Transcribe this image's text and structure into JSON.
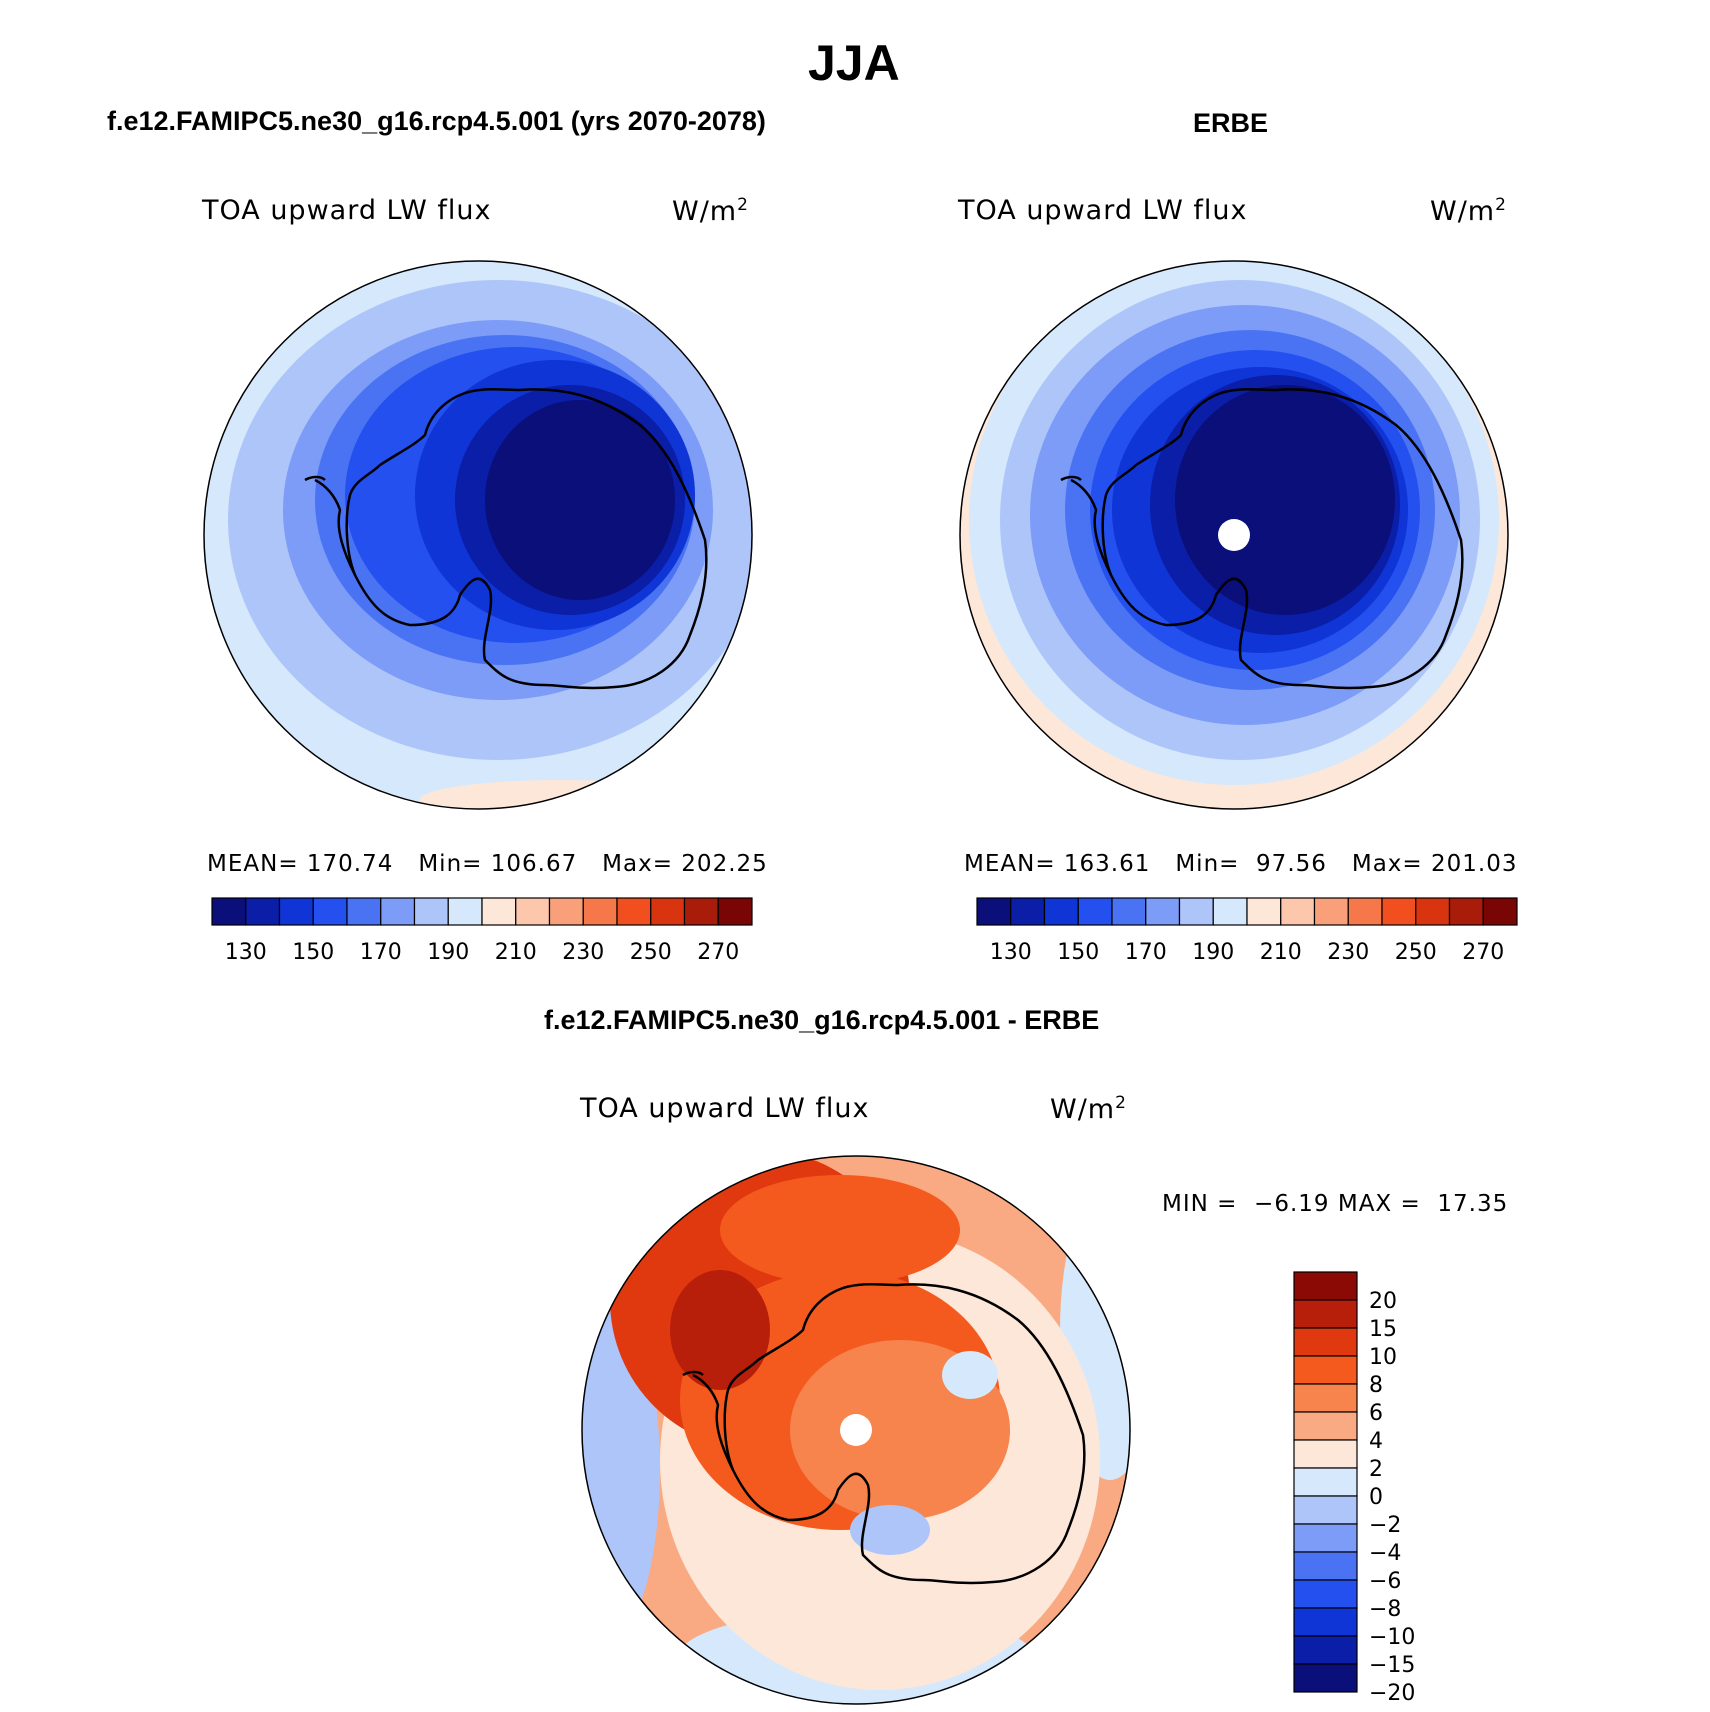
{
  "figure": {
    "title": "JJA"
  },
  "panels": [
    {
      "id": "model",
      "header": "f.e12.FAMIPC5.ne30_g16.rcp4.5.001 (yrs 2070-2078)",
      "variable_label": "TOA upward LW flux",
      "units_label": "W/m",
      "units_power": "2",
      "stats": {
        "mean_label": "MEAN=",
        "mean": "170.74",
        "min_label": "Min=",
        "min": "106.67",
        "max_label": "Max=",
        "max": "202.25"
      },
      "has_pole_hole": false
    },
    {
      "id": "obs",
      "header": "ERBE",
      "variable_label": "TOA upward LW flux",
      "units_label": "W/m",
      "units_power": "2",
      "stats": {
        "mean_label": "MEAN=",
        "mean": "163.61",
        "min_label": "Min=",
        "min": "97.56",
        "max_label": "Max=",
        "max": "201.03"
      },
      "has_pole_hole": true
    },
    {
      "id": "diff",
      "header": "f.e12.FAMIPC5.ne30_g16.rcp4.5.001 - ERBE",
      "variable_label": "TOA upward LW flux",
      "units_label": "W/m",
      "units_power": "2",
      "stats": {
        "min_label": "MIN =",
        "min": "−6.19",
        "max_label": "MAX =",
        "max": "17.35"
      },
      "has_pole_hole": true
    }
  ],
  "colorbars": {
    "absolute": {
      "colors": [
        "#0a0f7a",
        "#0a1ea8",
        "#0f35d6",
        "#2450f0",
        "#4a73f4",
        "#7c9cf7",
        "#aec5fa",
        "#d6e8fb",
        "#fde7d9",
        "#fcc7ad",
        "#f9a07a",
        "#f6774a",
        "#f14f1f",
        "#d93410",
        "#a81c09",
        "#7a0505"
      ],
      "tick_labels": [
        "130",
        "150",
        "170",
        "190",
        "210",
        "230",
        "250",
        "270"
      ]
    },
    "difference": {
      "colors_top_to_bottom": [
        "#8b0a05",
        "#b81f0b",
        "#e0390f",
        "#f45a1e",
        "#f7834d",
        "#f9aa82",
        "#fde7d9",
        "#d6e8fb",
        "#aec5fa",
        "#7c9cf7",
        "#4a73f4",
        "#2450f0",
        "#0f35d6",
        "#0a1ea8",
        "#0a0f7a"
      ],
      "tick_labels_top_to_bottom": [
        "20",
        "15",
        "10",
        "8",
        "6",
        "4",
        "2",
        "0",
        "−2",
        "−4",
        "−6",
        "−8",
        "−10",
        "−15",
        "−20"
      ]
    }
  },
  "chart_data": [
    {
      "type": "heatmap",
      "title": "f.e12.FAMIPC5.ne30_g16.rcp4.5.001 (yrs 2070-2078)",
      "projection": "south polar stereographic",
      "field": "TOA upward LW flux",
      "units": "W/m^2",
      "mean": 170.74,
      "min": 106.67,
      "max": 202.25,
      "contour_levels": [
        130,
        140,
        150,
        160,
        170,
        180,
        190,
        200,
        210,
        220,
        230,
        240,
        250,
        260,
        270
      ],
      "approx_rings_pole_to_edge": [
        115,
        135,
        145,
        160,
        175,
        190,
        200
      ]
    },
    {
      "type": "heatmap",
      "title": "ERBE",
      "projection": "south polar stereographic",
      "field": "TOA upward LW flux",
      "units": "W/m^2",
      "mean": 163.61,
      "min": 97.56,
      "max": 201.03,
      "contour_levels": [
        130,
        140,
        150,
        160,
        170,
        180,
        190,
        200,
        210,
        220,
        230,
        240,
        250,
        260,
        270
      ],
      "approx_rings_pole_to_edge": [
        110,
        140,
        150,
        165,
        175,
        185,
        195,
        205
      ]
    },
    {
      "type": "heatmap",
      "title": "f.e12.FAMIPC5.ne30_g16.rcp4.5.001 - ERBE",
      "projection": "south polar stereographic",
      "field": "TOA upward LW flux",
      "units": "W/m^2",
      "min": -6.19,
      "max": 17.35,
      "contour_levels": [
        -20,
        -15,
        -10,
        -8,
        -6,
        -4,
        -2,
        0,
        2,
        4,
        6,
        8,
        10,
        15,
        20
      ]
    }
  ]
}
